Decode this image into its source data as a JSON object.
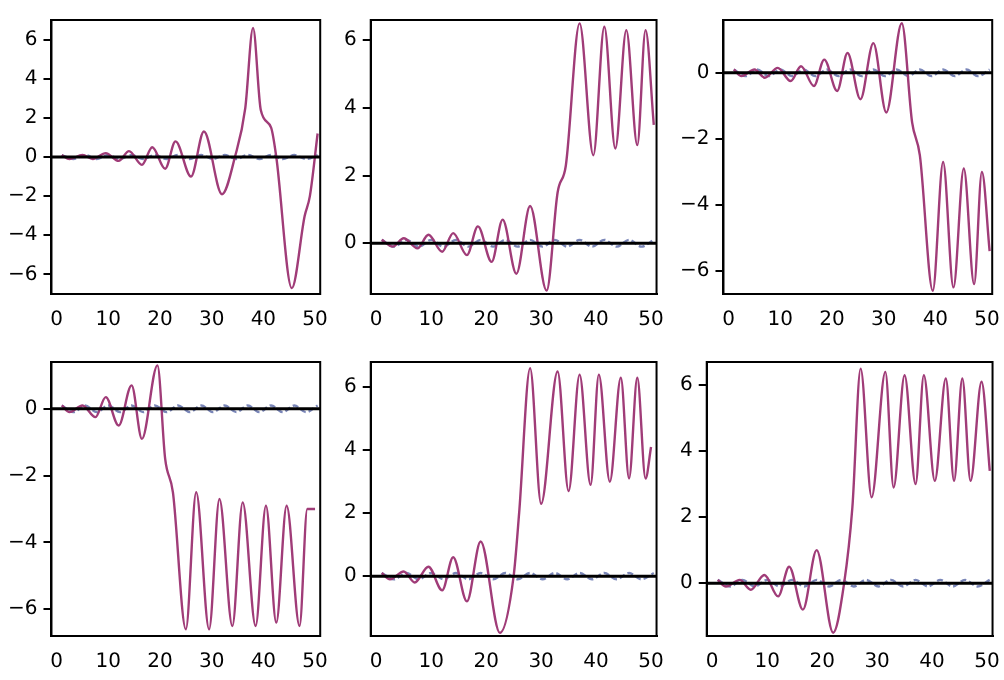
{
  "chart_data": [
    {
      "type": "line",
      "xlim": [
        -1,
        51
      ],
      "xticks": [
        0,
        10,
        20,
        30,
        40,
        50
      ],
      "ylim": [
        -7,
        7
      ],
      "yticks": [
        -6,
        -4,
        -2,
        0,
        2,
        4,
        6
      ],
      "ref_lines": [
        {
          "axis": "y",
          "value": 0,
          "color": "#000000"
        }
      ],
      "series": [
        {
          "color": "#a03c78",
          "x": [
            1,
            2.5,
            5,
            7,
            9.5,
            12,
            14,
            16.5,
            18.5,
            21,
            23,
            26,
            28.5,
            32,
            34.5,
            36.5,
            38,
            39.5,
            41.5,
            42.5,
            45.5,
            48,
            49,
            50.5
          ],
          "values": [
            0.1,
            -0.1,
            0.1,
            -0.1,
            0.2,
            -0.2,
            0.3,
            -0.4,
            0.5,
            -0.6,
            0.8,
            -1,
            1.3,
            -1.9,
            0,
            2.5,
            6.6,
            2.4,
            1.5,
            0,
            -6.7,
            -3,
            -2,
            1.2
          ]
        },
        {
          "color": "#7a86b8",
          "line_style": "dashed",
          "x": [
            1,
            3.25,
            5.5,
            7.75,
            10,
            12.25,
            14.5,
            16.75,
            19,
            21.25,
            23.5,
            25.75,
            28,
            30.25,
            32.5,
            34.75,
            37,
            39.25,
            41.5,
            43.75,
            46,
            48.25,
            50.5
          ],
          "values": [
            0.1,
            -0.1,
            0.1,
            -0.1,
            0.1,
            -0.1,
            0.1,
            -0.1,
            0.1,
            -0.1,
            0.1,
            -0.1,
            0.1,
            -0.1,
            0.1,
            -0.1,
            0.1,
            -0.1,
            0.1,
            -0.1,
            0.1,
            -0.1,
            0.1
          ]
        }
      ]
    },
    {
      "type": "line",
      "xlim": [
        -1,
        51
      ],
      "xticks": [
        0,
        10,
        20,
        30,
        40,
        50
      ],
      "ylim": [
        -1.5,
        6.6
      ],
      "yticks": [
        0,
        2,
        4,
        6
      ],
      "ref_lines": [
        {
          "axis": "y",
          "value": 0,
          "color": "#000000"
        }
      ],
      "series": [
        {
          "color": "#a03c78",
          "x": [
            1,
            3,
            5,
            7.5,
            9.5,
            12,
            14,
            16.5,
            18.5,
            21,
            23,
            25.5,
            28,
            31,
            33,
            34.5,
            37,
            39.5,
            41.5,
            43.5,
            45.5,
            47.5,
            49,
            50.5
          ],
          "values": [
            0.1,
            -0.1,
            0.15,
            -0.15,
            0.25,
            -0.25,
            0.3,
            -0.35,
            0.5,
            -0.55,
            0.7,
            -0.9,
            1.1,
            -1.4,
            1.5,
            2.3,
            6.5,
            2.6,
            6.4,
            2.8,
            6.3,
            2.9,
            6.3,
            3.5
          ]
        },
        {
          "color": "#7a86b8",
          "line_style": "dashed",
          "x": [
            1,
            3.25,
            5.5,
            7.75,
            10,
            12.25,
            14.5,
            16.75,
            19,
            21.25,
            23.5,
            25.75,
            28,
            30.25,
            32.5,
            34.75,
            37,
            39.25,
            41.5,
            43.75,
            46,
            48.25,
            50.5
          ],
          "values": [
            0.1,
            -0.1,
            0.1,
            -0.1,
            0.1,
            -0.1,
            0.1,
            -0.1,
            0.1,
            -0.1,
            0.1,
            -0.1,
            0.1,
            -0.1,
            0.1,
            -0.1,
            0.1,
            -0.1,
            0.1,
            -0.1,
            0.1,
            -0.1,
            0.1
          ]
        }
      ]
    },
    {
      "type": "line",
      "xlim": [
        -1,
        51
      ],
      "xticks": [
        0,
        10,
        20,
        30,
        40,
        50
      ],
      "ylim": [
        -6.7,
        1.6
      ],
      "yticks": [
        -6,
        -4,
        -2,
        0
      ],
      "ref_lines": [
        {
          "axis": "y",
          "value": 0,
          "color": "#000000"
        }
      ],
      "series": [
        {
          "color": "#a03c78",
          "x": [
            1,
            2.5,
            5,
            7,
            9.5,
            12,
            14,
            16.5,
            18.5,
            21,
            23,
            25.5,
            28,
            30.5,
            33.5,
            35.5,
            37,
            39.5,
            41.5,
            43.5,
            45.5,
            47.5,
            49,
            50.5
          ],
          "values": [
            0.1,
            -0.1,
            0.1,
            -0.15,
            0.15,
            -0.25,
            0.2,
            -0.4,
            0.4,
            -0.55,
            0.6,
            -0.8,
            0.9,
            -1.2,
            1.5,
            -1.5,
            -2.5,
            -6.6,
            -2.7,
            -6.5,
            -2.9,
            -6.4,
            -3,
            -5.4
          ]
        },
        {
          "color": "#7a86b8",
          "line_style": "dashed",
          "x": [
            1,
            3.25,
            5.5,
            7.75,
            10,
            12.25,
            14.5,
            16.75,
            19,
            21.25,
            23.5,
            25.75,
            28,
            30.25,
            32.5,
            34.75,
            37,
            39.25,
            41.5,
            43.75,
            46,
            48.25,
            50.5
          ],
          "values": [
            0.1,
            -0.1,
            0.1,
            -0.1,
            0.1,
            -0.1,
            0.1,
            -0.1,
            0.1,
            -0.1,
            0.1,
            -0.1,
            0.1,
            -0.1,
            0.1,
            -0.1,
            0.1,
            -0.1,
            0.1,
            -0.1,
            0.1,
            -0.1,
            0.1
          ]
        }
      ]
    },
    {
      "type": "line",
      "xlim": [
        -1,
        51
      ],
      "xticks": [
        0,
        10,
        20,
        30,
        40,
        50
      ],
      "ylim": [
        -6.8,
        1.4
      ],
      "yticks": [
        -6,
        -4,
        -2,
        0
      ],
      "ref_lines": [
        {
          "axis": "y",
          "value": 0,
          "color": "#000000"
        }
      ],
      "series": [
        {
          "color": "#a03c78",
          "x": [
            1,
            2.5,
            5,
            7.5,
            9.5,
            12,
            14.5,
            16.5,
            19.5,
            21,
            22.5,
            25,
            27,
            29.5,
            31.5,
            34,
            36,
            38.5,
            40.5,
            42.5,
            44.5,
            47,
            48.5,
            50
          ],
          "values": [
            0.1,
            -0.1,
            0.1,
            -0.25,
            0.35,
            -0.5,
            0.7,
            -0.9,
            1.3,
            -1.5,
            -2.5,
            -6.6,
            -2.5,
            -6.6,
            -2.7,
            -6.5,
            -2.8,
            -6.5,
            -2.9,
            -6.4,
            -2.9,
            -6.5,
            -3,
            -3
          ]
        },
        {
          "color": "#7a86b8",
          "line_style": "dashed",
          "x": [
            1,
            3.25,
            5.5,
            7.75,
            10,
            12.25,
            14.5,
            16.75,
            19,
            21.25,
            23.5,
            25.75,
            28,
            30.25,
            32.5,
            34.75,
            37,
            39.25,
            41.5,
            43.75,
            46,
            48.25,
            50.5
          ],
          "values": [
            0.1,
            -0.1,
            0.1,
            -0.1,
            0.1,
            -0.1,
            0.1,
            -0.1,
            0.1,
            -0.1,
            0.1,
            -0.1,
            0.1,
            -0.1,
            0.1,
            -0.1,
            0.1,
            -0.1,
            0.1,
            -0.1,
            0.1,
            -0.1,
            0.1
          ]
        }
      ]
    },
    {
      "type": "line",
      "xlim": [
        -1,
        51
      ],
      "xticks": [
        0,
        10,
        20,
        30,
        40,
        50
      ],
      "ylim": [
        -1.9,
        6.8
      ],
      "yticks": [
        0,
        2,
        4,
        6
      ],
      "ref_lines": [
        {
          "axis": "y",
          "value": 0,
          "color": "#000000"
        }
      ],
      "series": [
        {
          "color": "#a03c78",
          "x": [
            1,
            2.5,
            5,
            7,
            9.5,
            12,
            14,
            16.5,
            19,
            22.5,
            25,
            26,
            28,
            30,
            33,
            35,
            37,
            39,
            40.5,
            42.5,
            44.5,
            46,
            47.5,
            49,
            50
          ],
          "values": [
            0.1,
            -0.1,
            0.15,
            -0.2,
            0.3,
            -0.45,
            0.6,
            -0.8,
            1.1,
            -1.8,
            0,
            2,
            6.6,
            2.3,
            6.5,
            2.7,
            6.4,
            2.9,
            6.4,
            3,
            6.3,
            3.1,
            6.3,
            3.1,
            4.1
          ]
        },
        {
          "color": "#7a86b8",
          "line_style": "dashed",
          "x": [
            1,
            3.25,
            5.5,
            7.75,
            10,
            12.25,
            14.5,
            16.75,
            19,
            21.25,
            23.5,
            25.75,
            28,
            30.25,
            32.5,
            34.75,
            37,
            39.25,
            41.5,
            43.75,
            46,
            48.25,
            50.5
          ],
          "values": [
            0.1,
            -0.1,
            0.1,
            -0.1,
            0.1,
            -0.1,
            0.1,
            -0.1,
            0.1,
            -0.1,
            0.1,
            -0.1,
            0.1,
            -0.1,
            0.1,
            -0.1,
            0.1,
            -0.1,
            0.1,
            -0.1,
            0.1,
            -0.1,
            0.1
          ]
        }
      ]
    },
    {
      "type": "line",
      "xlim": [
        -1,
        51
      ],
      "xticks": [
        0,
        10,
        20,
        30,
        40,
        50
      ],
      "ylim": [
        -1.6,
        6.7
      ],
      "yticks": [
        0,
        2,
        4,
        6
      ],
      "ref_lines": [
        {
          "axis": "y",
          "value": 0,
          "color": "#000000"
        }
      ],
      "series": [
        {
          "color": "#a03c78",
          "x": [
            1,
            2.5,
            5,
            7,
            9.5,
            12,
            14,
            16.5,
            19,
            22,
            24,
            25.5,
            27,
            29,
            31.5,
            33,
            35,
            37,
            38.5,
            40.5,
            42.5,
            44,
            45.5,
            47,
            49,
            50.5
          ],
          "values": [
            0.1,
            -0.1,
            0.1,
            -0.2,
            0.25,
            -0.4,
            0.5,
            -0.8,
            1,
            -1.5,
            0,
            2.3,
            6.5,
            2.6,
            6.4,
            2.9,
            6.3,
            3,
            6.3,
            3.1,
            6.2,
            3.1,
            6.2,
            3.1,
            6.1,
            3.4
          ]
        },
        {
          "color": "#7a86b8",
          "line_style": "dashed",
          "x": [
            1,
            3.25,
            5.5,
            7.75,
            10,
            12.25,
            14.5,
            16.75,
            19,
            21.25,
            23.5,
            25.75,
            28,
            30.25,
            32.5,
            34.75,
            37,
            39.25,
            41.5,
            43.75,
            46,
            48.25,
            50.5
          ],
          "values": [
            0.1,
            -0.1,
            0.1,
            -0.1,
            0.1,
            -0.1,
            0.1,
            -0.1,
            0.1,
            -0.1,
            0.1,
            -0.1,
            0.1,
            -0.1,
            0.1,
            -0.1,
            0.1,
            -0.1,
            0.1,
            -0.1,
            0.1,
            -0.1,
            0.1
          ]
        }
      ]
    }
  ]
}
